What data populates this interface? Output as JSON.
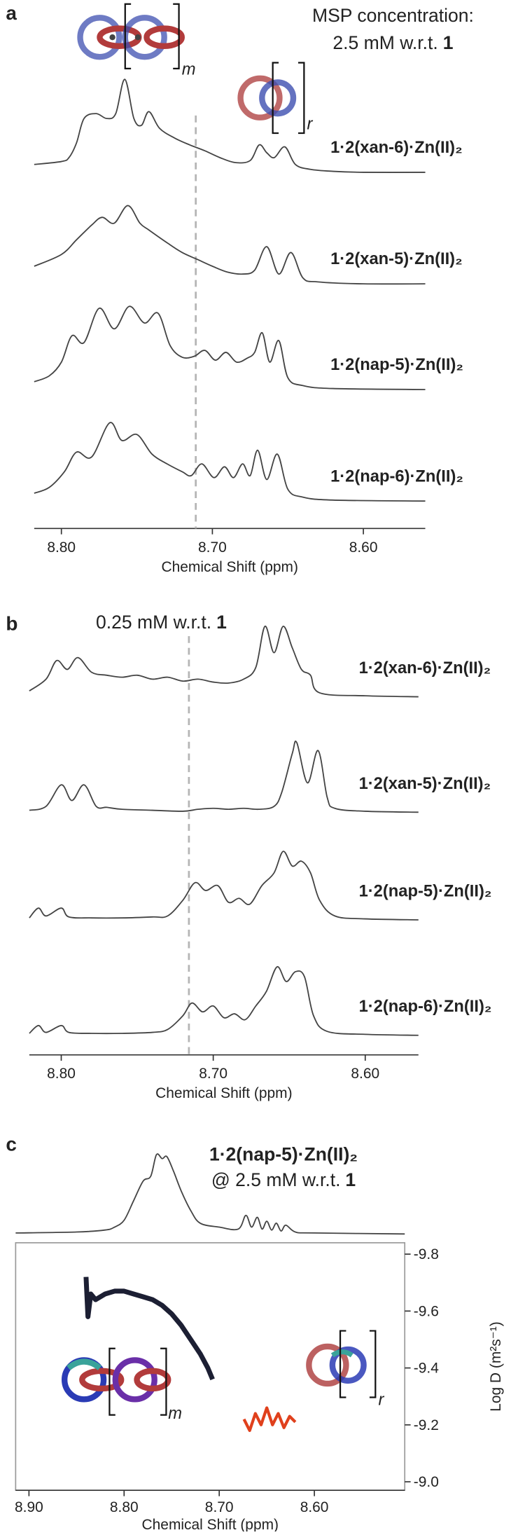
{
  "chart_data": [
    {
      "type": "stacked-spectra",
      "panel": "a",
      "annotation": "MSP concentration:",
      "annotation2": "2.5 mM w.r.t.",
      "annotation2_bold": "1",
      "icon_labels": [
        "m",
        "r"
      ],
      "xlabel": "Chemical Shift (ppm)",
      "xlim": [
        8.818,
        8.559
      ],
      "xticks": [
        {
          "value": 8.8,
          "label": "8.80"
        },
        {
          "value": 8.7,
          "label": "8.70"
        },
        {
          "value": 8.6,
          "label": "8.60"
        }
      ],
      "reference_line": 8.711,
      "series": [
        {
          "name": "1·2(xan-6)·Zn(II)₂",
          "color": "#444444",
          "x": [
            8.818,
            8.8,
            8.795,
            8.79,
            8.785,
            8.777,
            8.77,
            8.764,
            8.758,
            8.752,
            8.747,
            8.742,
            8.735,
            8.725,
            8.715,
            8.705,
            8.695,
            8.685,
            8.675,
            8.669,
            8.664,
            8.659,
            8.652,
            8.645,
            8.635,
            8.62,
            8.6,
            8.559
          ],
          "values": [
            8,
            11,
            15,
            30,
            55,
            60,
            55,
            60,
            95,
            55,
            48,
            62,
            45,
            35,
            28,
            22,
            15,
            10,
            12,
            28,
            20,
            15,
            26,
            8,
            3,
            1,
            0,
            0
          ]
        },
        {
          "name": "1·2(xan-5)·Zn(II)₂",
          "color": "#444444",
          "x": [
            8.818,
            8.8,
            8.79,
            8.78,
            8.773,
            8.765,
            8.756,
            8.748,
            8.742,
            8.73,
            8.72,
            8.71,
            8.7,
            8.69,
            8.68,
            8.672,
            8.664,
            8.656,
            8.648,
            8.64,
            8.63,
            8.6,
            8.559
          ],
          "values": [
            18,
            30,
            45,
            60,
            68,
            62,
            80,
            62,
            55,
            42,
            32,
            25,
            18,
            12,
            10,
            14,
            38,
            10,
            32,
            6,
            2,
            0,
            0
          ]
        },
        {
          "name": "1·2(nap-5)·Zn(II)₂",
          "color": "#444444",
          "x": [
            8.818,
            8.808,
            8.8,
            8.793,
            8.785,
            8.775,
            8.765,
            8.755,
            8.745,
            8.736,
            8.728,
            8.72,
            8.712,
            8.705,
            8.698,
            8.691,
            8.684,
            8.677,
            8.672,
            8.667,
            8.662,
            8.656,
            8.65,
            8.64,
            8.62,
            8.559
          ],
          "values": [
            8,
            14,
            28,
            55,
            48,
            83,
            62,
            85,
            68,
            78,
            45,
            33,
            34,
            40,
            30,
            38,
            28,
            32,
            38,
            58,
            28,
            50,
            12,
            4,
            1,
            0
          ]
        },
        {
          "name": "1·2(nap-6)·Zn(II)₂",
          "color": "#444444",
          "x": [
            8.818,
            8.808,
            8.798,
            8.79,
            8.78,
            8.768,
            8.76,
            8.75,
            8.74,
            8.73,
            8.72,
            8.714,
            8.707,
            8.699,
            8.692,
            8.686,
            8.68,
            8.675,
            8.67,
            8.664,
            8.657,
            8.65,
            8.64,
            8.62,
            8.559
          ],
          "values": [
            8,
            14,
            30,
            50,
            45,
            80,
            62,
            68,
            48,
            38,
            30,
            26,
            38,
            24,
            35,
            24,
            38,
            26,
            52,
            22,
            48,
            12,
            4,
            1,
            0
          ]
        }
      ]
    },
    {
      "type": "stacked-spectra",
      "panel": "b",
      "annotation": "0.25 mM w.r.t.",
      "annotation_bold": "1",
      "xlabel": "Chemical Shift (ppm)",
      "xlim": [
        8.821,
        8.565
      ],
      "xticks": [
        {
          "value": 8.8,
          "label": "8.80"
        },
        {
          "value": 8.7,
          "label": "8.70"
        },
        {
          "value": 8.6,
          "label": "8.60"
        }
      ],
      "reference_line": 8.716,
      "series": [
        {
          "name": "1·2(xan-6)·Zn(II)₂",
          "color": "#444444",
          "x": [
            8.821,
            8.81,
            8.803,
            8.796,
            8.789,
            8.78,
            8.77,
            8.76,
            8.75,
            8.74,
            8.73,
            8.72,
            8.71,
            8.7,
            8.69,
            8.68,
            8.672,
            8.666,
            8.66,
            8.654,
            8.648,
            8.642,
            8.636,
            8.63,
            8.6,
            8.565
          ],
          "values": [
            6,
            18,
            37,
            28,
            40,
            25,
            22,
            20,
            22,
            18,
            20,
            16,
            18,
            15,
            14,
            18,
            30,
            72,
            45,
            72,
            50,
            28,
            22,
            4,
            1,
            0
          ]
        },
        {
          "name": "1·2(xan-5)·Zn(II)₂",
          "color": "#444444",
          "x": [
            8.821,
            8.81,
            8.8,
            8.793,
            8.785,
            8.777,
            8.77,
            8.76,
            8.74,
            8.72,
            8.71,
            8.7,
            8.69,
            8.68,
            8.67,
            8.66,
            8.655,
            8.648,
            8.645,
            8.638,
            8.631,
            8.625,
            8.62,
            8.6,
            8.565
          ],
          "values": [
            2,
            6,
            28,
            12,
            28,
            6,
            5,
            3,
            2,
            1,
            3,
            4,
            3,
            4,
            3,
            6,
            20,
            60,
            71,
            30,
            63,
            15,
            4,
            1,
            0
          ]
        },
        {
          "name": "1·2(nap-5)·Zn(II)₂",
          "color": "#444444",
          "x": [
            8.821,
            8.815,
            8.81,
            8.8,
            8.795,
            8.78,
            8.76,
            8.74,
            8.73,
            8.72,
            8.712,
            8.705,
            8.697,
            8.69,
            8.683,
            8.676,
            8.668,
            8.66,
            8.654,
            8.648,
            8.642,
            8.636,
            8.63,
            8.62,
            8.6,
            8.565
          ],
          "values": [
            2,
            12,
            4,
            12,
            3,
            2,
            2,
            3,
            4,
            20,
            38,
            30,
            35,
            18,
            22,
            16,
            35,
            48,
            70,
            55,
            60,
            48,
            20,
            4,
            1,
            0
          ]
        },
        {
          "name": "1·2(nap-6)·Zn(II)₂",
          "color": "#444444",
          "x": [
            8.821,
            8.815,
            8.81,
            8.8,
            8.795,
            8.78,
            8.76,
            8.74,
            8.73,
            8.72,
            8.714,
            8.707,
            8.7,
            8.693,
            8.686,
            8.679,
            8.672,
            8.665,
            8.658,
            8.652,
            8.646,
            8.64,
            8.634,
            8.625,
            8.6,
            8.565
          ],
          "values": [
            2,
            10,
            3,
            10,
            3,
            2,
            2,
            3,
            6,
            20,
            33,
            24,
            30,
            18,
            22,
            16,
            30,
            45,
            70,
            55,
            65,
            60,
            20,
            4,
            1,
            0
          ]
        }
      ]
    },
    {
      "type": "dosy",
      "panel": "c",
      "title": "1·2(nap-5)·Zn(II)₂",
      "subtitle": "@ 2.5 mM w.r.t.",
      "subtitle_bold": "1",
      "icon_labels": [
        "m",
        "r"
      ],
      "xlabel": "Chemical Shift (ppm)",
      "ylabel": "Log D (m²s⁻¹)",
      "xlim": [
        8.914,
        8.505
      ],
      "xticks": [
        {
          "value": 8.9,
          "label": "8.90"
        },
        {
          "value": 8.8,
          "label": "8.80"
        },
        {
          "value": 8.7,
          "label": "8.70"
        },
        {
          "value": 8.6,
          "label": "8.60"
        }
      ],
      "ylim": [
        -8.97,
        -9.84
      ],
      "yticks": [
        -9.8,
        -9.6,
        -9.4,
        -9.2,
        {
          "value": -9,
          "label": "-9.0"
        }
      ],
      "spectrum": {
        "color": "#444444",
        "x": [
          8.914,
          8.85,
          8.82,
          8.81,
          8.8,
          8.79,
          8.78,
          8.772,
          8.766,
          8.76,
          8.755,
          8.748,
          8.74,
          8.73,
          8.72,
          8.7,
          8.68,
          8.672,
          8.666,
          8.66,
          8.655,
          8.65,
          8.645,
          8.64,
          8.635,
          8.63,
          8.62,
          8.6,
          8.505
        ],
        "values": [
          2,
          3,
          5,
          8,
          15,
          35,
          55,
          60,
          82,
          78,
          80,
          65,
          45,
          25,
          12,
          8,
          6,
          20,
          8,
          18,
          6,
          14,
          5,
          12,
          4,
          10,
          3,
          2,
          1
        ]
      },
      "series": [
        {
          "color": "#1c1f33",
          "x": [
            8.84,
            8.838,
            8.835,
            8.83,
            8.82,
            8.81,
            8.8,
            8.79,
            8.78,
            8.77,
            8.76,
            8.75,
            8.74,
            8.73,
            8.72,
            8.712,
            8.707
          ],
          "values": [
            -9.72,
            -9.58,
            -9.66,
            -9.64,
            -9.66,
            -9.67,
            -9.67,
            -9.66,
            -9.65,
            -9.64,
            -9.62,
            -9.59,
            -9.55,
            -9.5,
            -9.45,
            -9.4,
            -9.36
          ]
        },
        {
          "color": "#e0401c",
          "x": [
            8.674,
            8.668,
            8.662,
            8.656,
            8.65,
            8.644,
            8.638,
            8.632,
            8.626,
            8.62
          ],
          "values": [
            -9.22,
            -9.18,
            -9.24,
            -9.2,
            -9.26,
            -9.2,
            -9.24,
            -9.19,
            -9.23,
            -9.21
          ]
        }
      ]
    }
  ]
}
